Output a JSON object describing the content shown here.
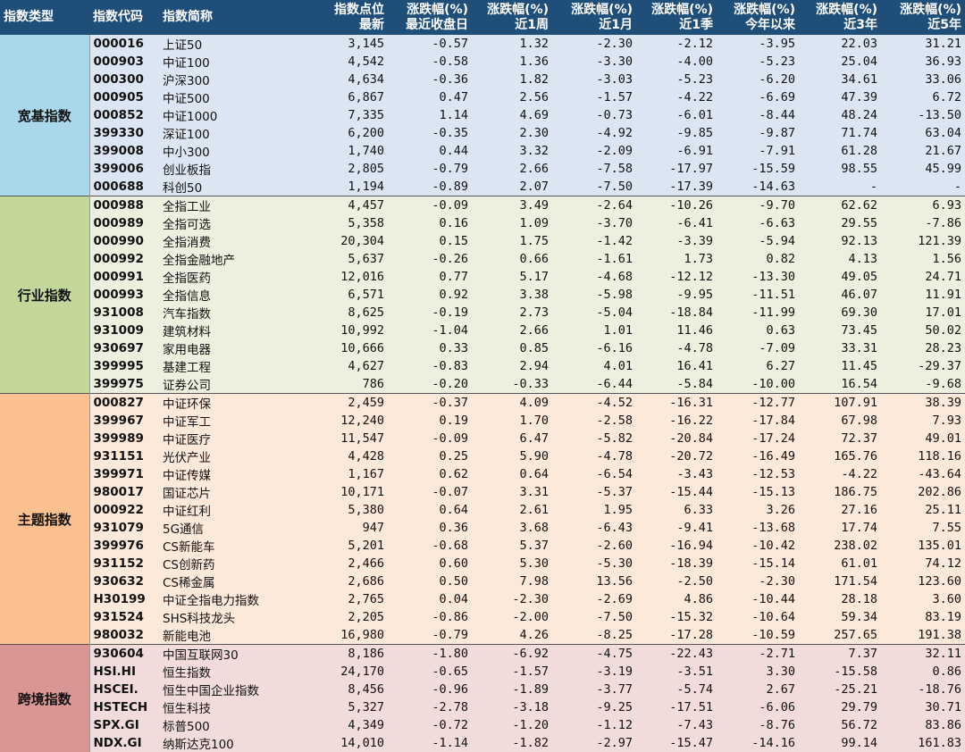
{
  "headers": [
    "指数类型",
    "指数代码",
    "指数简称",
    "指数点位\n最新",
    "涨跌幅(%)\n最近收盘日",
    "涨跌幅(%)\n近1周",
    "涨跌幅(%)\n近1月",
    "涨跌幅(%)\n近1季",
    "涨跌幅(%)\n今年以来",
    "涨跌幅(%)\n近3年",
    "涨跌幅(%)\n近5年"
  ],
  "groups": [
    {
      "label": "宽基指数",
      "color": "#a8d8ea",
      "row_color": "#dce6f2",
      "rows": [
        [
          "000016",
          "上证50",
          "3,145",
          "-0.57",
          "1.32",
          "-2.30",
          "-2.12",
          "-3.95",
          "22.03",
          "31.21"
        ],
        [
          "000903",
          "中证100",
          "4,542",
          "-0.58",
          "1.36",
          "-3.30",
          "-4.00",
          "-5.23",
          "25.04",
          "36.93"
        ],
        [
          "000300",
          "沪深300",
          "4,634",
          "-0.36",
          "1.82",
          "-3.03",
          "-5.23",
          "-6.20",
          "34.61",
          "33.06"
        ],
        [
          "000905",
          "中证500",
          "6,867",
          "0.47",
          "2.56",
          "-1.57",
          "-4.22",
          "-6.69",
          "47.39",
          "6.72"
        ],
        [
          "000852",
          "中证1000",
          "7,335",
          "1.14",
          "4.69",
          "-0.73",
          "-6.01",
          "-8.44",
          "48.24",
          "-13.50"
        ],
        [
          "399330",
          "深证100",
          "6,200",
          "-0.35",
          "2.30",
          "-4.92",
          "-9.85",
          "-9.87",
          "71.74",
          "63.04"
        ],
        [
          "399008",
          "中小300",
          "1,740",
          "0.44",
          "3.32",
          "-2.09",
          "-6.91",
          "-7.91",
          "61.28",
          "21.67"
        ],
        [
          "399006",
          "创业板指",
          "2,805",
          "-0.79",
          "2.66",
          "-7.58",
          "-17.97",
          "-15.59",
          "98.55",
          "45.99"
        ],
        [
          "000688",
          "科创50",
          "1,194",
          "-0.89",
          "2.07",
          "-7.50",
          "-17.39",
          "-14.63",
          "-",
          "-"
        ]
      ]
    },
    {
      "label": "行业指数",
      "color": "#c4d79b",
      "row_color": "#ebf1de",
      "rows": [
        [
          "000988",
          "全指工业",
          "4,457",
          "-0.09",
          "3.49",
          "-2.64",
          "-10.26",
          "-9.70",
          "62.62",
          "6.93"
        ],
        [
          "000989",
          "全指可选",
          "5,358",
          "0.16",
          "1.09",
          "-3.70",
          "-6.41",
          "-6.63",
          "29.55",
          "-7.86"
        ],
        [
          "000990",
          "全指消费",
          "20,304",
          "0.15",
          "1.75",
          "-1.42",
          "-3.39",
          "-5.94",
          "92.13",
          "121.39"
        ],
        [
          "000992",
          "全指金融地产",
          "5,637",
          "-0.26",
          "0.66",
          "-1.61",
          "1.73",
          "0.82",
          "4.13",
          "1.56"
        ],
        [
          "000991",
          "全指医药",
          "12,016",
          "0.77",
          "5.17",
          "-4.68",
          "-12.12",
          "-13.30",
          "49.05",
          "24.71"
        ],
        [
          "000993",
          "全指信息",
          "6,571",
          "0.92",
          "3.38",
          "-5.98",
          "-9.95",
          "-11.51",
          "46.07",
          "11.91"
        ],
        [
          "931008",
          "汽车指数",
          "8,625",
          "-0.19",
          "2.73",
          "-5.04",
          "-18.84",
          "-11.99",
          "69.30",
          "17.01"
        ],
        [
          "931009",
          "建筑材料",
          "10,992",
          "-1.04",
          "2.66",
          "1.01",
          "11.46",
          "0.63",
          "73.45",
          "50.02"
        ],
        [
          "930697",
          "家用电器",
          "10,666",
          "0.33",
          "0.85",
          "-6.16",
          "-4.78",
          "-7.09",
          "33.31",
          "28.23"
        ],
        [
          "399995",
          "基建工程",
          "4,627",
          "-0.83",
          "2.94",
          "4.01",
          "16.41",
          "6.27",
          "11.45",
          "-29.37"
        ],
        [
          "399975",
          "证券公司",
          "786",
          "-0.20",
          "-0.33",
          "-6.44",
          "-5.84",
          "-10.00",
          "16.54",
          "-9.68"
        ]
      ]
    },
    {
      "label": "主题指数",
      "color": "#fac090",
      "row_color": "#fde9d9",
      "rows": [
        [
          "000827",
          "中证环保",
          "2,459",
          "-0.37",
          "4.09",
          "-4.52",
          "-16.31",
          "-12.77",
          "107.91",
          "38.39"
        ],
        [
          "399967",
          "中证军工",
          "12,240",
          "0.19",
          "1.70",
          "-2.58",
          "-16.22",
          "-17.84",
          "67.98",
          "7.93"
        ],
        [
          "399989",
          "中证医疗",
          "11,547",
          "-0.09",
          "6.47",
          "-5.82",
          "-20.84",
          "-17.24",
          "72.37",
          "49.01"
        ],
        [
          "931151",
          "光伏产业",
          "4,428",
          "0.25",
          "5.90",
          "-4.78",
          "-20.72",
          "-16.49",
          "165.76",
          "118.16"
        ],
        [
          "399971",
          "中证传媒",
          "1,167",
          "0.62",
          "0.64",
          "-6.54",
          "-3.43",
          "-12.53",
          "-4.22",
          "-43.64"
        ],
        [
          "980017",
          "国证芯片",
          "10,171",
          "-0.07",
          "3.31",
          "-5.37",
          "-15.44",
          "-15.13",
          "186.75",
          "202.86"
        ],
        [
          "000922",
          "中证红利",
          "5,380",
          "0.64",
          "2.61",
          "1.95",
          "6.33",
          "3.26",
          "27.16",
          "25.11"
        ],
        [
          "931079",
          "5G通信",
          "947",
          "0.36",
          "3.68",
          "-6.43",
          "-9.41",
          "-13.68",
          "17.74",
          "7.55"
        ],
        [
          "399976",
          "CS新能车",
          "5,201",
          "-0.68",
          "5.37",
          "-2.60",
          "-16.94",
          "-10.42",
          "238.02",
          "135.01"
        ],
        [
          "931152",
          "CS创新药",
          "2,466",
          "0.60",
          "5.30",
          "-5.30",
          "-18.39",
          "-15.14",
          "61.01",
          "74.12"
        ],
        [
          "930632",
          "CS稀金属",
          "2,686",
          "0.50",
          "7.98",
          "13.56",
          "-2.50",
          "-2.30",
          "171.54",
          "123.60"
        ],
        [
          "H30199",
          "中证全指电力指数",
          "2,765",
          "0.04",
          "-2.30",
          "-2.69",
          "4.86",
          "-10.44",
          "28.18",
          "3.60"
        ],
        [
          "931524",
          "SHS科技龙头",
          "2,205",
          "-0.86",
          "-2.00",
          "-7.50",
          "-15.32",
          "-10.64",
          "59.34",
          "83.19"
        ],
        [
          "980032",
          "新能电池",
          "16,980",
          "-0.79",
          "4.26",
          "-8.25",
          "-17.28",
          "-10.59",
          "257.65",
          "191.38"
        ]
      ]
    },
    {
      "label": "跨境指数",
      "color": "#da9694",
      "row_color": "#f2dcdb",
      "rows": [
        [
          "930604",
          "中国互联网30",
          "8,186",
          "-1.80",
          "-6.92",
          "-4.75",
          "-22.43",
          "-2.71",
          "7.37",
          "32.11"
        ],
        [
          "HSI.HI",
          "恒生指数",
          "24,170",
          "-0.65",
          "-1.57",
          "-3.19",
          "-3.51",
          "3.30",
          "-15.58",
          "0.86"
        ],
        [
          "HSCEI.",
          "恒生中国企业指数",
          "8,456",
          "-0.96",
          "-1.89",
          "-3.77",
          "-5.74",
          "2.67",
          "-25.21",
          "-18.76"
        ],
        [
          "HSTECH",
          "恒生科技",
          "5,327",
          "-2.78",
          "-3.18",
          "-9.25",
          "-17.51",
          "-6.06",
          "29.79",
          "30.71"
        ],
        [
          "SPX.GI",
          "标普500",
          "4,349",
          "-0.72",
          "-1.20",
          "-1.12",
          "-7.43",
          "-8.76",
          "56.72",
          "83.86"
        ],
        [
          "NDX.GI",
          "纳斯达克100",
          "14,010",
          "-1.14",
          "-1.82",
          "-2.97",
          "-15.47",
          "-14.16",
          "99.14",
          "161.83"
        ]
      ]
    }
  ]
}
